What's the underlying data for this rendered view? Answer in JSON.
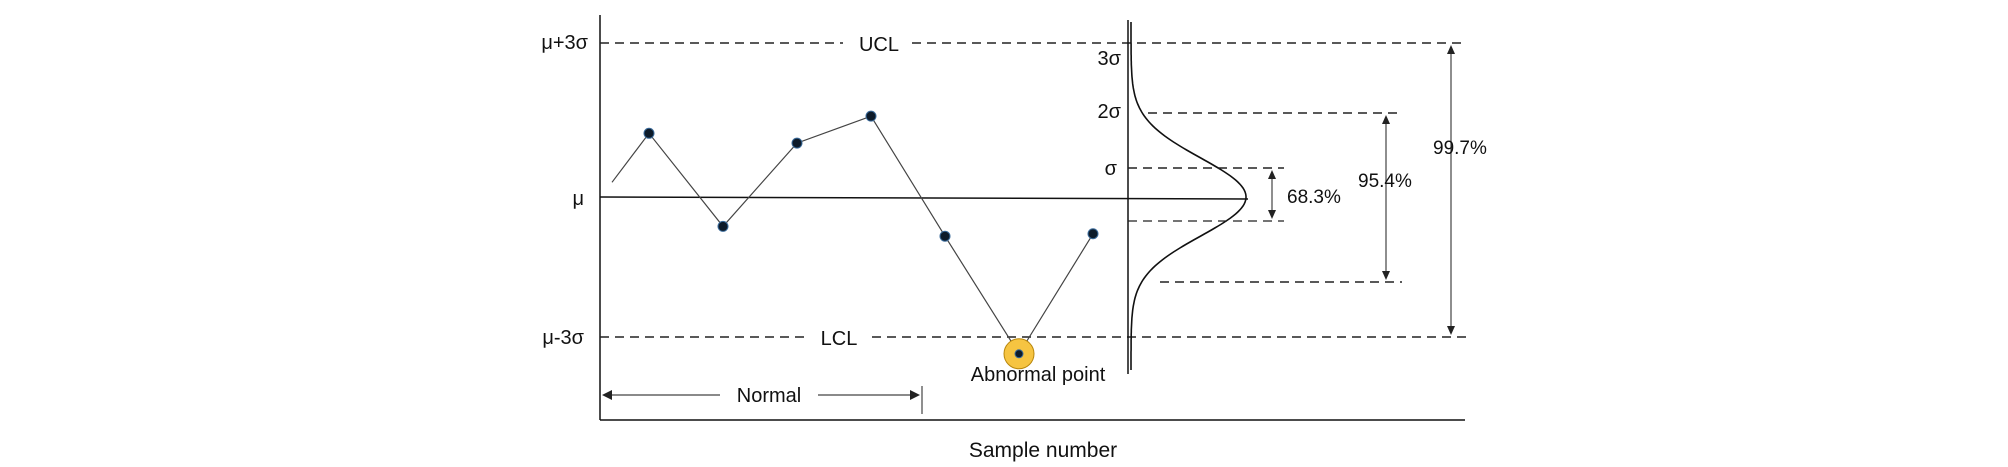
{
  "chart_data": {
    "type": "line",
    "xlabel": "Sample number",
    "y_labels": {
      "upper": "μ+3σ",
      "mean": "μ",
      "lower": "μ-3σ"
    },
    "control_limits": {
      "ucl": "UCL",
      "lcl": "LCL"
    },
    "points": [
      {
        "x": 1,
        "y": 1.3
      },
      {
        "x": 2,
        "y": -0.6
      },
      {
        "x": 3,
        "y": 1.1
      },
      {
        "x": 4,
        "y": 1.65
      },
      {
        "x": 5,
        "y": -0.8
      },
      {
        "x": 6,
        "y": -3.2
      },
      {
        "x": 7,
        "y": -0.75
      }
    ],
    "line_start": {
      "x": 0.5,
      "y": 0.3
    },
    "abnormal_point_index": 5,
    "abnormal_label": "Abnormal point",
    "normal_range_label": "Normal",
    "distribution": {
      "sigma_labels": [
        "3σ",
        "2σ",
        "σ"
      ],
      "coverage": [
        {
          "label": "68.3%",
          "sigma": 1
        },
        {
          "label": "95.4%",
          "sigma": 2
        },
        {
          "label": "99.7%",
          "sigma": 3
        }
      ]
    },
    "colors": {
      "highlight": "#f6c441",
      "highlight_stroke": "#b8860b",
      "point": "#0d1b2a"
    }
  }
}
